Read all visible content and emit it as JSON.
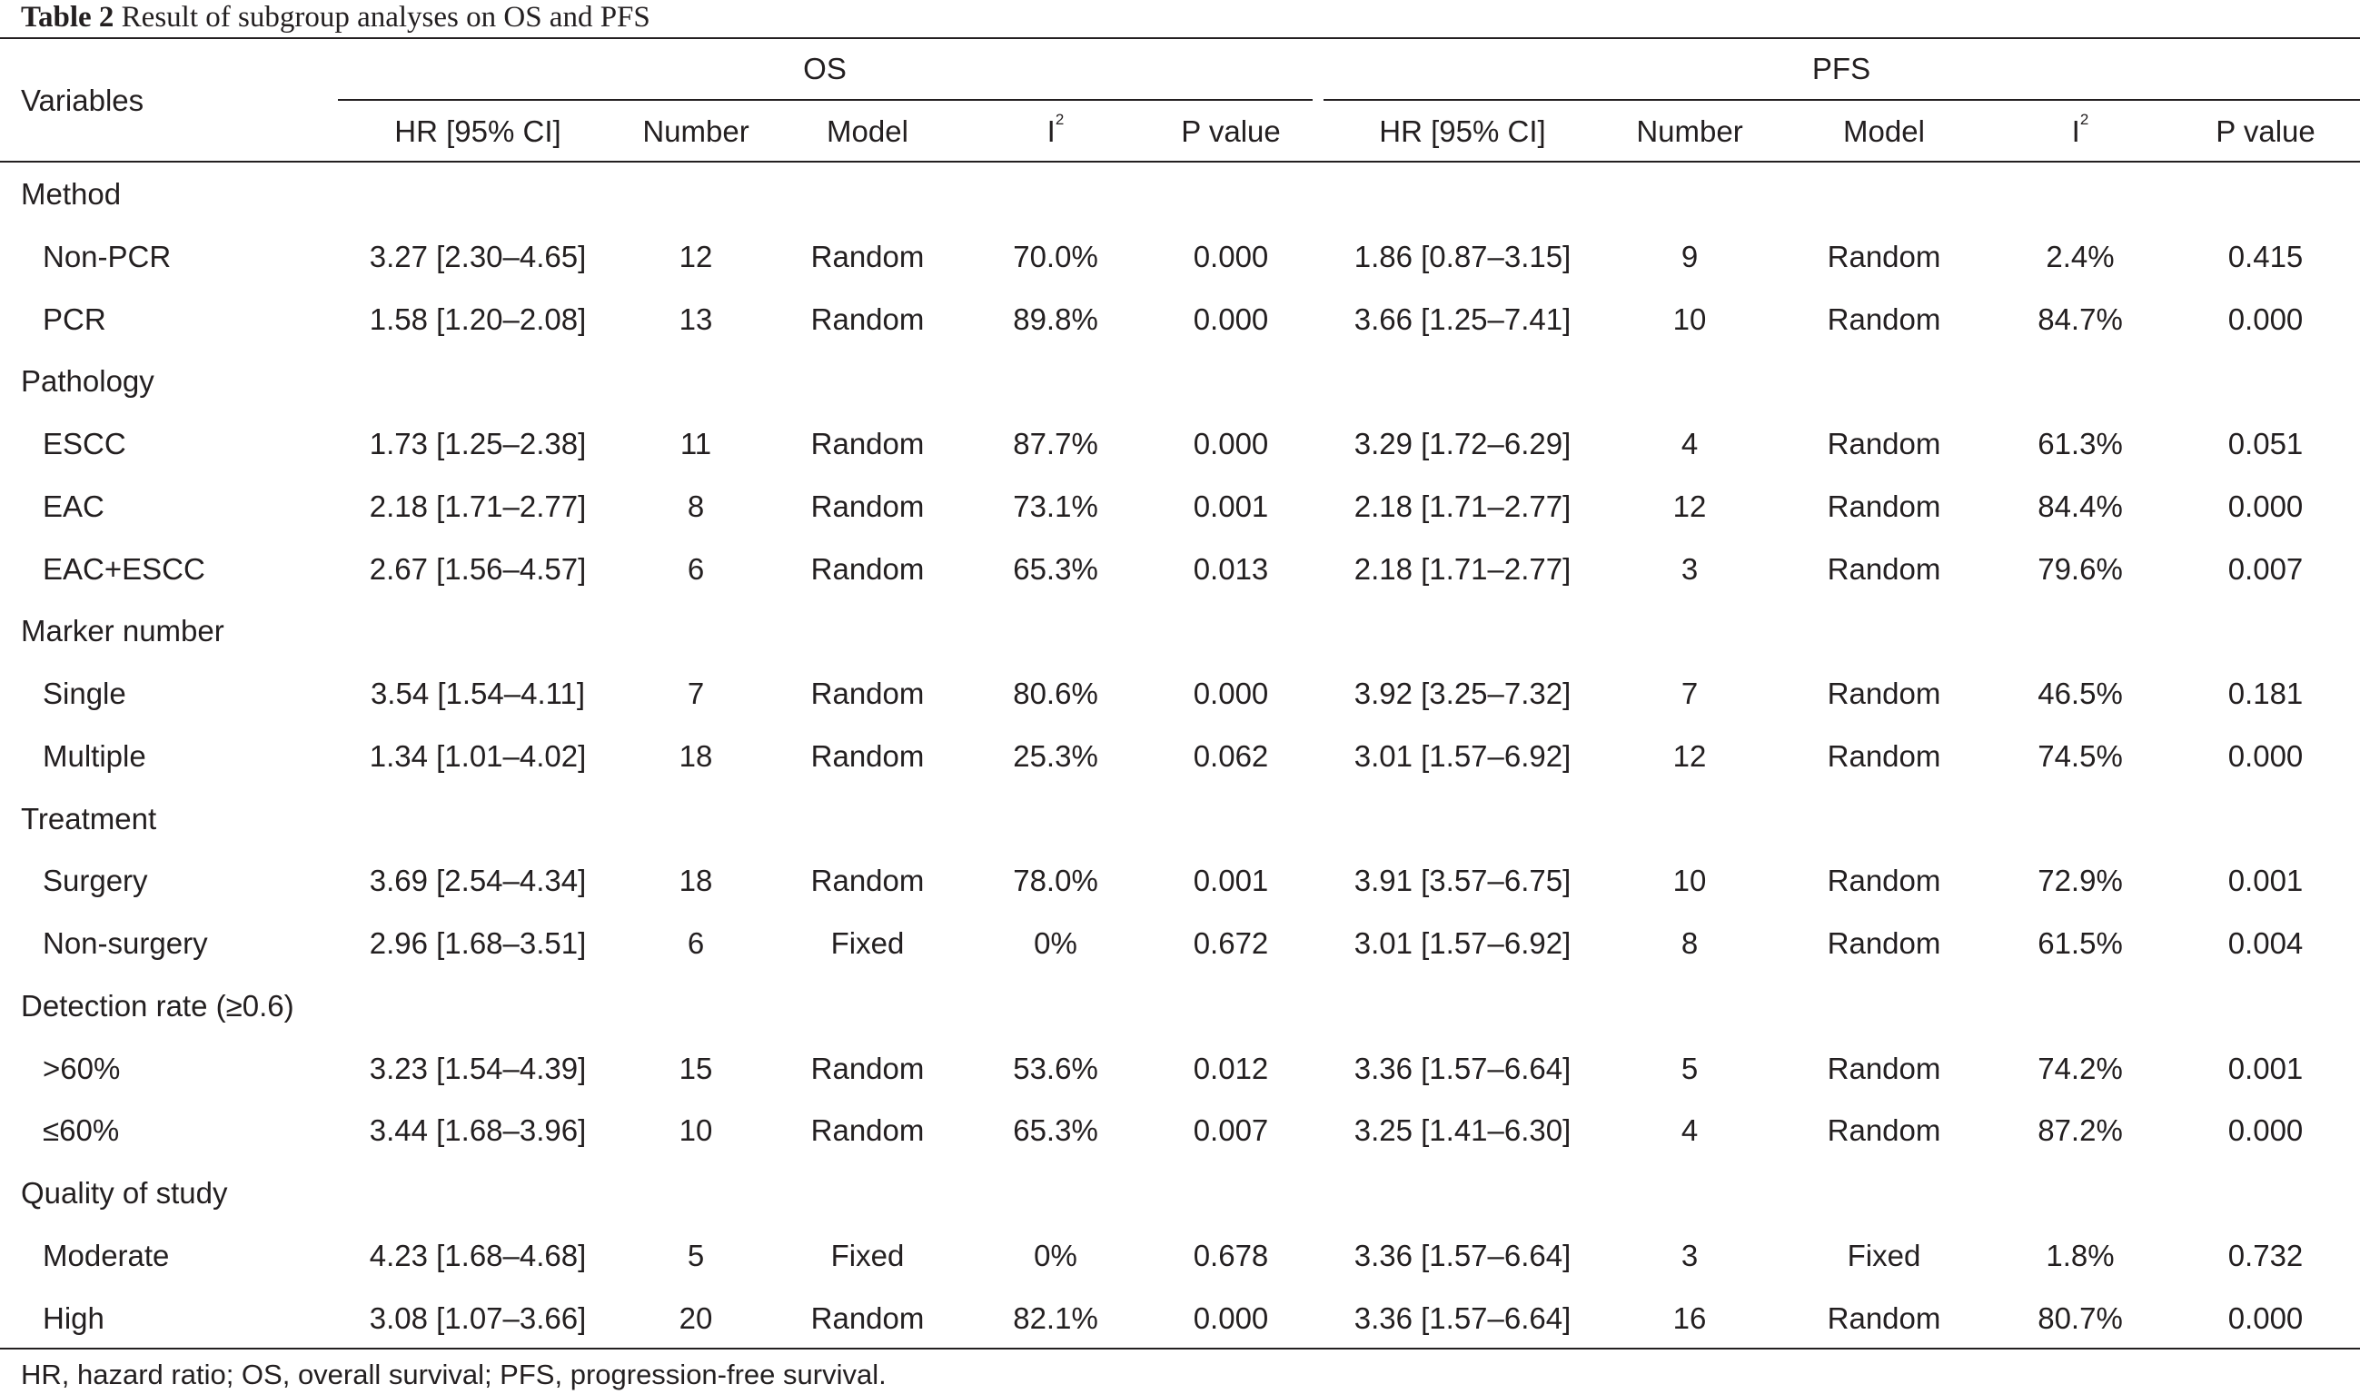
{
  "caption": {
    "label": "Table 2",
    "title": "Result of subgroup analyses on OS and PFS"
  },
  "header": {
    "variables": "Variables",
    "groups": [
      "OS",
      "PFS"
    ],
    "columns": {
      "hr": "HR [95% CI]",
      "number": "Number",
      "model": "Model",
      "i2_base": "I",
      "i2_sup": "2",
      "p": "P value"
    }
  },
  "rows": [
    {
      "kind": "section",
      "label": "Method"
    },
    {
      "kind": "data",
      "label": "Non-PCR",
      "os": [
        "3.27 [2.30–4.65]",
        "12",
        "Random",
        "70.0%",
        "0.000"
      ],
      "pfs": [
        "1.86 [0.87–3.15]",
        "9",
        "Random",
        "2.4%",
        "0.415"
      ]
    },
    {
      "kind": "data",
      "label": "PCR",
      "os": [
        "1.58 [1.20–2.08]",
        "13",
        "Random",
        "89.8%",
        "0.000"
      ],
      "pfs": [
        "3.66 [1.25–7.41]",
        "10",
        "Random",
        "84.7%",
        "0.000"
      ]
    },
    {
      "kind": "section",
      "label": "Pathology"
    },
    {
      "kind": "data",
      "label": "ESCC",
      "os": [
        "1.73 [1.25–2.38]",
        "11",
        "Random",
        "87.7%",
        "0.000"
      ],
      "pfs": [
        "3.29 [1.72–6.29]",
        "4",
        "Random",
        "61.3%",
        "0.051"
      ]
    },
    {
      "kind": "data",
      "label": "EAC",
      "os": [
        "2.18 [1.71–2.77]",
        "8",
        "Random",
        "73.1%",
        "0.001"
      ],
      "pfs": [
        "2.18 [1.71–2.77]",
        "12",
        "Random",
        "84.4%",
        "0.000"
      ]
    },
    {
      "kind": "data",
      "label": "EAC+ESCC",
      "os": [
        "2.67 [1.56–4.57]",
        "6",
        "Random",
        "65.3%",
        "0.013"
      ],
      "pfs": [
        "2.18 [1.71–2.77]",
        "3",
        "Random",
        "79.6%",
        "0.007"
      ]
    },
    {
      "kind": "section",
      "label": "Marker number"
    },
    {
      "kind": "data",
      "label": "Single",
      "os": [
        "3.54 [1.54–4.11]",
        "7",
        "Random",
        "80.6%",
        "0.000"
      ],
      "pfs": [
        "3.92 [3.25–7.32]",
        "7",
        "Random",
        "46.5%",
        "0.181"
      ]
    },
    {
      "kind": "data",
      "label": "Multiple",
      "os": [
        "1.34 [1.01–4.02]",
        "18",
        "Random",
        "25.3%",
        "0.062"
      ],
      "pfs": [
        "3.01 [1.57–6.92]",
        "12",
        "Random",
        "74.5%",
        "0.000"
      ]
    },
    {
      "kind": "section",
      "label": "Treatment"
    },
    {
      "kind": "data",
      "label": "Surgery",
      "os": [
        "3.69 [2.54–4.34]",
        "18",
        "Random",
        "78.0%",
        "0.001"
      ],
      "pfs": [
        "3.91 [3.57–6.75]",
        "10",
        "Random",
        "72.9%",
        "0.001"
      ]
    },
    {
      "kind": "data",
      "label": "Non-surgery",
      "os": [
        "2.96 [1.68–3.51]",
        "6",
        "Fixed",
        "0%",
        "0.672"
      ],
      "pfs": [
        "3.01 [1.57–6.92]",
        "8",
        "Random",
        "61.5%",
        "0.004"
      ]
    },
    {
      "kind": "section",
      "label": "Detection rate (≥0.6)"
    },
    {
      "kind": "data",
      "label": ">60%",
      "os": [
        "3.23 [1.54–4.39]",
        "15",
        "Random",
        "53.6%",
        "0.012"
      ],
      "pfs": [
        "3.36 [1.57–6.64]",
        "5",
        "Random",
        "74.2%",
        "0.001"
      ]
    },
    {
      "kind": "data",
      "label": "≤60%",
      "os": [
        "3.44 [1.68–3.96]",
        "10",
        "Random",
        "65.3%",
        "0.007"
      ],
      "pfs": [
        "3.25 [1.41–6.30]",
        "4",
        "Random",
        "87.2%",
        "0.000"
      ]
    },
    {
      "kind": "section",
      "label": "Quality of study"
    },
    {
      "kind": "data",
      "label": "Moderate",
      "os": [
        "4.23 [1.68–4.68]",
        "5",
        "Fixed",
        "0%",
        "0.678"
      ],
      "pfs": [
        "3.36 [1.57–6.64]",
        "3",
        "Fixed",
        "1.8%",
        "0.732"
      ]
    },
    {
      "kind": "data",
      "label": "High",
      "os": [
        "3.08 [1.07–3.66]",
        "20",
        "Random",
        "82.1%",
        "0.000"
      ],
      "pfs": [
        "3.36 [1.57–6.64]",
        "16",
        "Random",
        "80.7%",
        "0.000"
      ]
    }
  ],
  "footnote": "HR, hazard ratio; OS, overall survival; PFS, progression-free survival."
}
